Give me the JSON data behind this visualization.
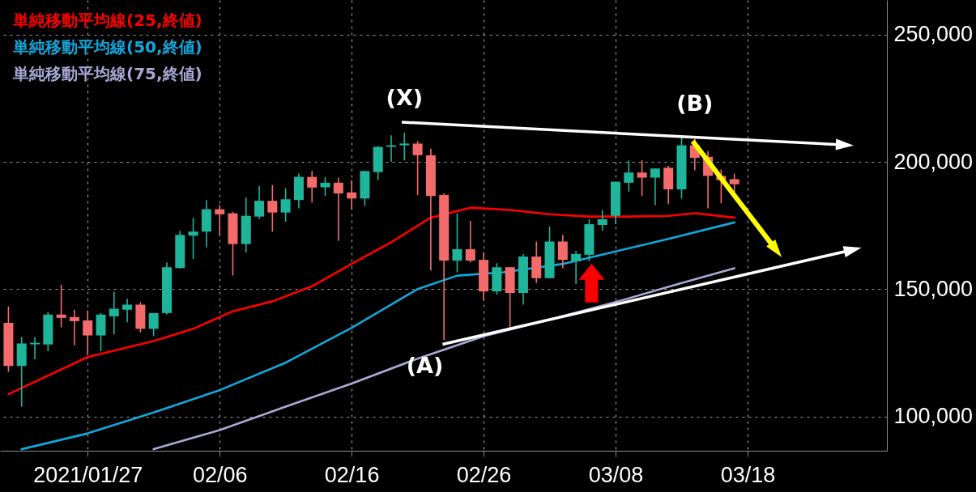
{
  "chart_data": {
    "type": "candlestick",
    "x": [
      "2021-01-21",
      "2021-01-22",
      "2021-01-23",
      "2021-01-24",
      "2021-01-25",
      "2021-01-26",
      "2021-01-27",
      "2021-01-28",
      "2021-01-29",
      "2021-01-30",
      "2021-01-31",
      "2021-02-01",
      "2021-02-02",
      "2021-02-03",
      "2021-02-04",
      "2021-02-05",
      "2021-02-06",
      "2021-02-07",
      "2021-02-08",
      "2021-02-09",
      "2021-02-10",
      "2021-02-11",
      "2021-02-12",
      "2021-02-13",
      "2021-02-14",
      "2021-02-15",
      "2021-02-16",
      "2021-02-17",
      "2021-02-18",
      "2021-02-19",
      "2021-02-20",
      "2021-02-21",
      "2021-02-22",
      "2021-02-23",
      "2021-02-24",
      "2021-02-25",
      "2021-02-26",
      "2021-02-27",
      "2021-02-28",
      "2021-03-01",
      "2021-03-02",
      "2021-03-03",
      "2021-03-04",
      "2021-03-05",
      "2021-03-06",
      "2021-03-07",
      "2021-03-08",
      "2021-03-09",
      "2021-03-10",
      "2021-03-11",
      "2021-03-12",
      "2021-03-13",
      "2021-03-14",
      "2021-03-15",
      "2021-03-16",
      "2021-03-17"
    ],
    "ohlc": [
      [
        136700,
        143200,
        117500,
        119800
      ],
      [
        119800,
        131200,
        103800,
        128600
      ],
      [
        128300,
        131200,
        122400,
        128900
      ],
      [
        128200,
        141000,
        125600,
        140000
      ],
      [
        140000,
        151700,
        135000,
        138700
      ],
      [
        139000,
        141900,
        127900,
        137400
      ],
      [
        137700,
        141600,
        124000,
        131800
      ],
      [
        131800,
        140600,
        125600,
        140000
      ],
      [
        139300,
        149100,
        132200,
        142300
      ],
      [
        141900,
        146200,
        137000,
        143900
      ],
      [
        143900,
        144900,
        133000,
        134400
      ],
      [
        134400,
        140600,
        131500,
        140600
      ],
      [
        140600,
        160500,
        140000,
        158600
      ],
      [
        158300,
        172900,
        158000,
        171300
      ],
      [
        171000,
        178000,
        161800,
        172600
      ],
      [
        172600,
        185000,
        166400,
        181400
      ],
      [
        181400,
        183000,
        171000,
        179400
      ],
      [
        179800,
        180400,
        155300,
        167700
      ],
      [
        167700,
        186000,
        164400,
        178800
      ],
      [
        178500,
        190500,
        177500,
        184700
      ],
      [
        184700,
        190900,
        172600,
        180100
      ],
      [
        180100,
        189600,
        176500,
        185300
      ],
      [
        185000,
        195400,
        181700,
        194100
      ],
      [
        194100,
        196400,
        184000,
        189900
      ],
      [
        190000,
        194100,
        186600,
        191800
      ],
      [
        191800,
        193800,
        169000,
        187600
      ],
      [
        188000,
        192800,
        181400,
        185600
      ],
      [
        185600,
        196400,
        182700,
        196400
      ],
      [
        196000,
        206200,
        192800,
        205900
      ],
      [
        205900,
        210400,
        200000,
        206500
      ],
      [
        206500,
        211400,
        200600,
        207200
      ],
      [
        207200,
        208200,
        187000,
        202600
      ],
      [
        202600,
        205200,
        157300,
        186600
      ],
      [
        187000,
        187600,
        130000,
        161200
      ],
      [
        161200,
        179800,
        156600,
        165700
      ],
      [
        165700,
        176800,
        160500,
        161200
      ],
      [
        161500,
        164400,
        145500,
        149100
      ],
      [
        149100,
        160200,
        147800,
        158600
      ],
      [
        158600,
        158600,
        134800,
        148500
      ],
      [
        148500,
        163800,
        143900,
        162800
      ],
      [
        162800,
        168700,
        152400,
        154300
      ],
      [
        154300,
        174600,
        154300,
        168700
      ],
      [
        168700,
        171300,
        158200,
        161500
      ],
      [
        160900,
        165000,
        152000,
        163800
      ],
      [
        163500,
        177500,
        160900,
        175500
      ],
      [
        175200,
        181100,
        172900,
        177500
      ],
      [
        178800,
        192200,
        175500,
        192200
      ],
      [
        191800,
        200600,
        188300,
        195800
      ],
      [
        195800,
        200600,
        186600,
        193800
      ],
      [
        193800,
        197400,
        183000,
        197400
      ],
      [
        197700,
        198400,
        183400,
        189200
      ],
      [
        189200,
        209500,
        185600,
        206500
      ],
      [
        206500,
        209100,
        196700,
        201600
      ],
      [
        202000,
        204200,
        181700,
        194500
      ],
      [
        194500,
        197000,
        183700,
        192800
      ],
      [
        193200,
        195400,
        188000,
        191200
      ]
    ],
    "colors": [
      "#f46b6b",
      "#1fb59b",
      "#1fb59b",
      "#1fb59b",
      "#f46b6b",
      "#f46b6b",
      "#f46b6b",
      "#1fb59b",
      "#1fb59b",
      "#1fb59b",
      "#f46b6b",
      "#1fb59b",
      "#1fb59b",
      "#1fb59b",
      "#1fb59b",
      "#1fb59b",
      "#f46b6b",
      "#f46b6b",
      "#1fb59b",
      "#1fb59b",
      "#f46b6b",
      "#1fb59b",
      "#1fb59b",
      "#f46b6b",
      "#1fb59b",
      "#f46b6b",
      "#f46b6b",
      "#1fb59b",
      "#1fb59b",
      "#1fb59b",
      "#1fb59b",
      "#f46b6b",
      "#f46b6b",
      "#f46b6b",
      "#1fb59b",
      "#f46b6b",
      "#f46b6b",
      "#1fb59b",
      "#f46b6b",
      "#1fb59b",
      "#f46b6b",
      "#1fb59b",
      "#f46b6b",
      "#1fb59b",
      "#1fb59b",
      "#1fb59b",
      "#1fb59b",
      "#1fb59b",
      "#f46b6b",
      "#1fb59b",
      "#f46b6b",
      "#1fb59b",
      "#f46b6b",
      "#f46b6b",
      "#f46b6b",
      "#f46b6b"
    ],
    "series": [
      {
        "type": "line",
        "name": "単純移動平均線(25,終値)",
        "color": "#ff0000",
        "x": [
          "2021-01-21",
          "2021-01-27",
          "2021-02-01",
          "2021-02-04",
          "2021-02-07",
          "2021-02-10",
          "2021-02-13",
          "2021-02-16",
          "2021-02-19",
          "2021-02-22",
          "2021-02-25",
          "2021-02-28",
          "2021-03-03",
          "2021-03-06",
          "2021-03-09",
          "2021-03-12",
          "2021-03-14",
          "2021-03-17"
        ],
        "values": [
          108700,
          123300,
          129600,
          134400,
          141300,
          145200,
          151100,
          159900,
          168400,
          178100,
          182000,
          181100,
          179400,
          178500,
          178500,
          178800,
          179800,
          178100
        ]
      },
      {
        "type": "line",
        "name": "単純移動平均線(50,終値)",
        "color": "#11a8dc",
        "x": [
          "2021-01-22",
          "2021-01-27",
          "2021-02-01",
          "2021-02-06",
          "2021-02-11",
          "2021-02-16",
          "2021-02-21",
          "2021-02-24",
          "2021-02-27T12:00",
          "2021-03-04",
          "2021-03-08",
          "2021-03-12",
          "2021-03-17"
        ],
        "values": [
          87100,
          93300,
          101500,
          110300,
          121100,
          134800,
          150000,
          155300,
          156600,
          159900,
          164800,
          169700,
          176200
        ]
      },
      {
        "type": "line",
        "name": "単純移動平均線(75,終値)",
        "color": "#a9a9d6",
        "x": [
          "2021-02-01",
          "2021-02-06",
          "2021-02-11",
          "2021-02-16",
          "2021-02-21",
          "2021-02-26",
          "2021-03-03",
          "2021-03-08",
          "2021-03-13",
          "2021-03-17"
        ],
        "values": [
          87100,
          94600,
          103800,
          112900,
          122700,
          131500,
          138000,
          144900,
          152400,
          158200
        ]
      }
    ],
    "annotations": [
      {
        "text": "(X)",
        "x": "2021-02-20",
        "y": 211400
      },
      {
        "text": "(A)",
        "x": "2021-02-24",
        "y": 127300
      },
      {
        "text": "(B)",
        "x": "2021-03-14",
        "y": 209100
      }
    ],
    "xlim": [
      "2021-01-20T16:00",
      "2021-03-28T06:00"
    ],
    "xticks": [
      {
        "value": "2021-01-27",
        "label": "2021/01/27"
      },
      {
        "value": "2021-02-06",
        "label": "02/06"
      },
      {
        "value": "2021-02-16",
        "label": "02/16"
      },
      {
        "value": "2021-02-26",
        "label": "02/26"
      },
      {
        "value": "2021-03-08",
        "label": "03/08"
      },
      {
        "value": "2021-03-18",
        "label": "03/18"
      }
    ],
    "ylim": [
      86500,
      263600
    ],
    "yticks": [
      {
        "value": 100000,
        "label": "100,000"
      },
      {
        "value": 150000,
        "label": "150,000"
      },
      {
        "value": 200000,
        "label": "200,000"
      },
      {
        "value": 250000,
        "label": "250,000"
      }
    ],
    "grid": true,
    "legend": "top left"
  }
}
